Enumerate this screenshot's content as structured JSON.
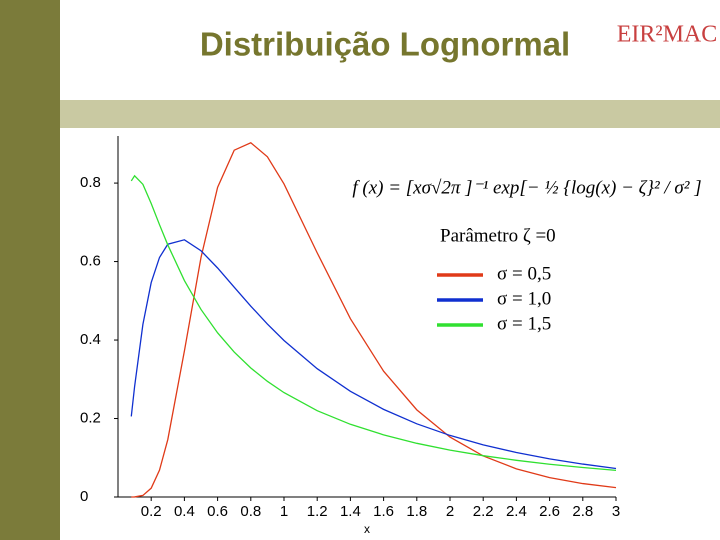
{
  "chart_data": {
    "type": "line",
    "title": "Distribuição Lognormal",
    "logo": "EIR²MAC",
    "x_label": "x",
    "formula": "f (x) = [xσ√2π ]⁻¹ exp[− ½ {log(x) − ζ}² / σ² ]",
    "legend_title": "Parâmetro ζ =0",
    "x": [
      0.08,
      0.1,
      0.15,
      0.2,
      0.25,
      0.3,
      0.4,
      0.5,
      0.6,
      0.7,
      0.8,
      0.9,
      1.0,
      1.2,
      1.4,
      1.6,
      1.8,
      2.0,
      2.2,
      2.4,
      2.6,
      2.8,
      3.0
    ],
    "series": [
      {
        "name": "σ = 0,5",
        "color": "#e03a18",
        "values": [
          0.0,
          0.0002,
          0.004,
          0.0225,
          0.0683,
          0.1464,
          0.372,
          0.6104,
          0.7892,
          0.8838,
          0.9028,
          0.8671,
          0.7979,
          0.6222,
          0.4545,
          0.3206,
          0.2221,
          0.1526,
          0.1046,
          0.0718,
          0.0494,
          0.0342,
          0.0238
        ]
      },
      {
        "name": "σ = 1,0",
        "color": "#1030d0",
        "values": [
          0.2054,
          0.2815,
          0.4399,
          0.5464,
          0.6104,
          0.6442,
          0.6555,
          0.6275,
          0.5836,
          0.5348,
          0.4864,
          0.4408,
          0.3989,
          0.327,
          0.2693,
          0.2233,
          0.1865,
          0.1569,
          0.1329,
          0.1133,
          0.0972,
          0.0839,
          0.0727
        ]
      },
      {
        "name": "σ = 1,5",
        "color": "#30e030",
        "values": [
          0.8055,
          0.8186,
          0.7968,
          0.7479,
          0.694,
          0.6424,
          0.5517,
          0.478,
          0.4183,
          0.3693,
          0.3288,
          0.2948,
          0.266,
          0.22,
          0.1853,
          0.1583,
          0.1368,
          0.1195,
          0.1053,
          0.0935,
          0.0835,
          0.0751,
          0.0678
        ]
      }
    ],
    "xlim": [
      0,
      3
    ],
    "xticks": [
      0.2,
      0.4,
      0.6,
      0.8,
      1,
      1.2,
      1.4,
      1.6,
      1.8,
      2,
      2.2,
      2.4,
      2.6,
      2.8,
      3
    ],
    "ylim": [
      0,
      0.92
    ],
    "yticks": [
      0,
      0.2,
      0.4,
      0.6,
      0.8
    ]
  }
}
